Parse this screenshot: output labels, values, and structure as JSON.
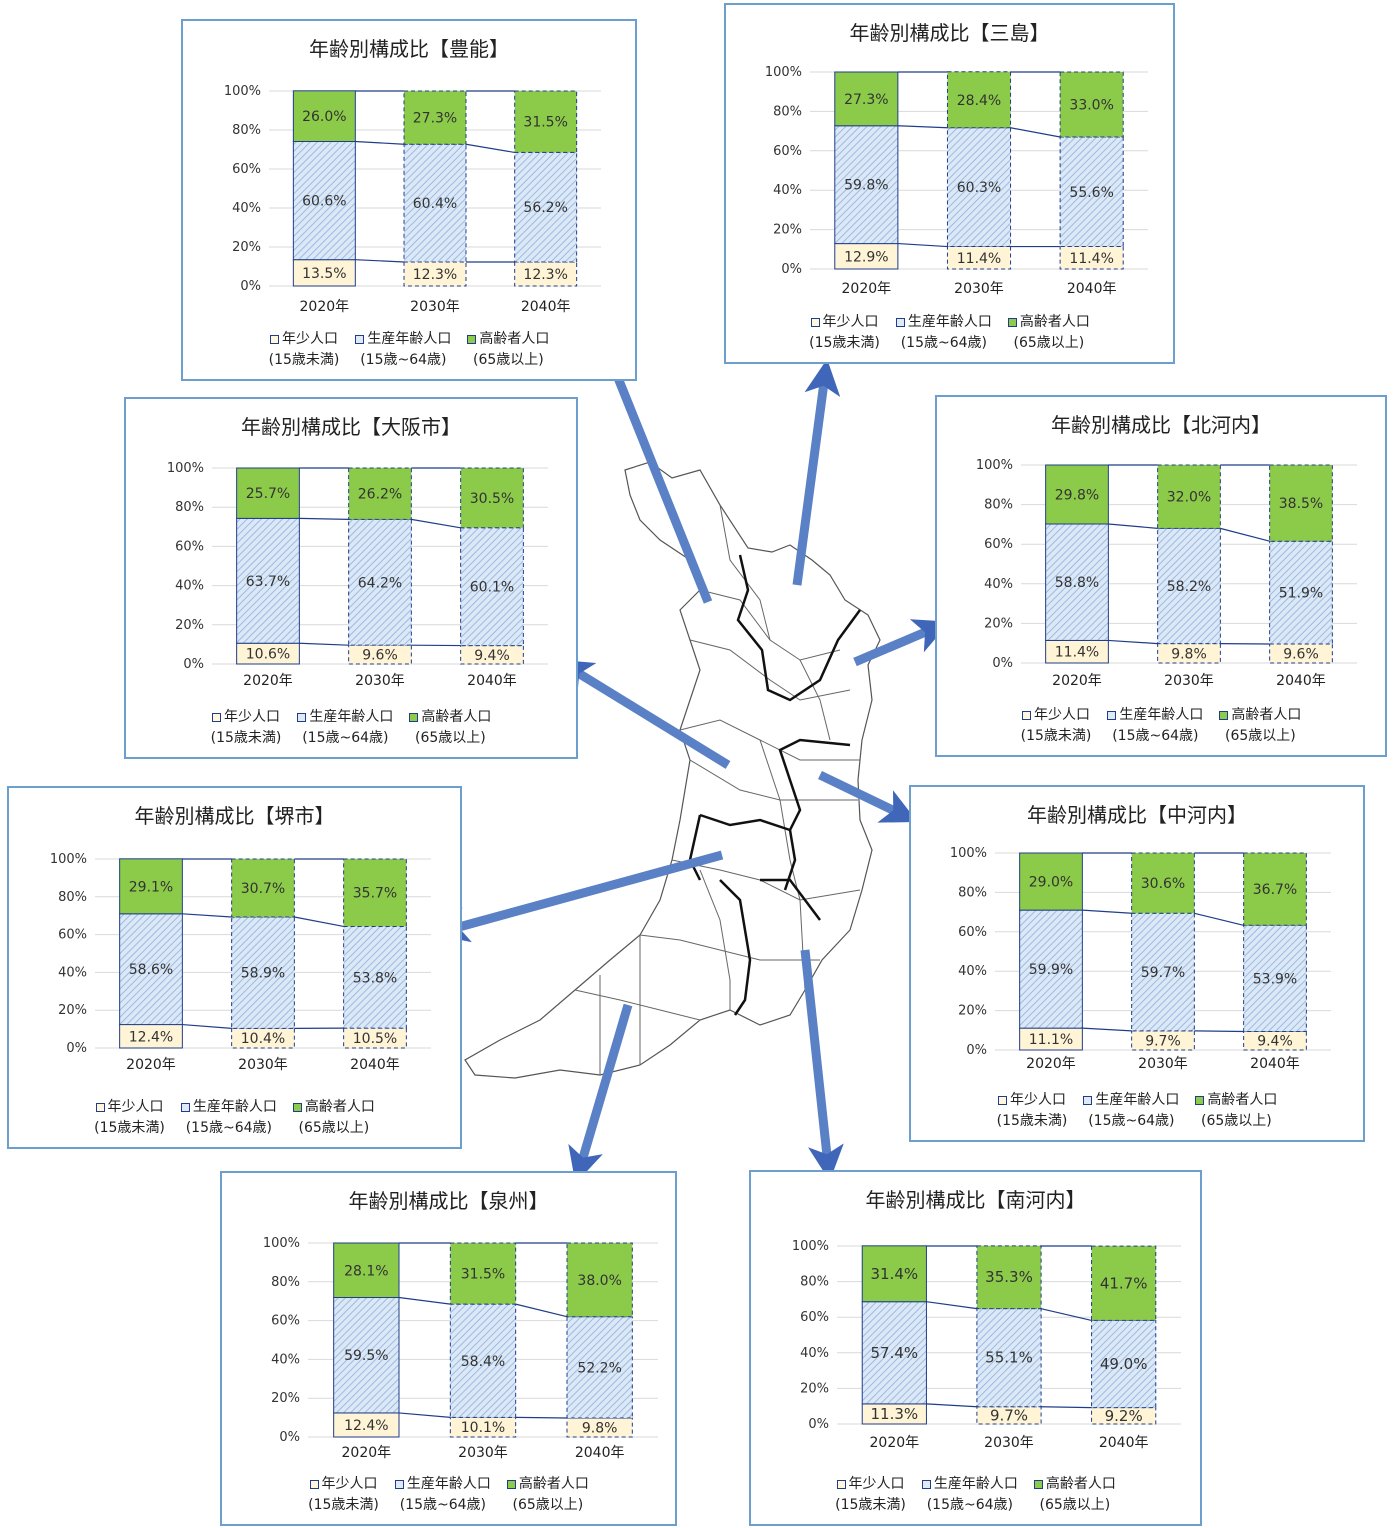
{
  "legend": {
    "youth": "年少人口",
    "youth_sub": "(15歳未満)",
    "working": "生産年齢人口",
    "working_sub": "(15歳~64歳)",
    "elderly": "高齢者人口",
    "elderly_sub": "(65歳以上)"
  },
  "colors": {
    "youth": "#fff4d6",
    "working": "#dce8f6",
    "elderly": "#8ccb4a",
    "border": "#1f3d8a",
    "arrow": "#4a72bd",
    "panel_border": "#6d9fce"
  },
  "chart_data": [
    {
      "type": "bar",
      "title": "年齢別構成比【豊能】",
      "categories": [
        "2020年",
        "2030年",
        "2040年"
      ],
      "yticks": [
        "0%",
        "20%",
        "40%",
        "60%",
        "80%",
        "100%"
      ],
      "ylim": [
        0,
        100
      ],
      "series": [
        {
          "name": "年少人口",
          "values": [
            13.5,
            12.3,
            12.3
          ],
          "labels": [
            "13.5%",
            "12.3%",
            "12.3%"
          ]
        },
        {
          "name": "生産年齢人口",
          "values": [
            60.6,
            60.4,
            56.2
          ],
          "labels": [
            "60.6%",
            "60.4%",
            "56.2%"
          ]
        },
        {
          "name": "高齢者人口",
          "values": [
            26.0,
            27.3,
            31.5
          ],
          "labels": [
            "26.0%",
            "27.3%",
            "31.5%"
          ]
        }
      ]
    },
    {
      "type": "bar",
      "title": "年齢別構成比【三島】",
      "categories": [
        "2020年",
        "2030年",
        "2040年"
      ],
      "yticks": [
        "0%",
        "20%",
        "40%",
        "60%",
        "80%",
        "100%"
      ],
      "ylim": [
        0,
        100
      ],
      "series": [
        {
          "name": "年少人口",
          "values": [
            12.9,
            11.4,
            11.4
          ],
          "labels": [
            "12.9%",
            "11.4%",
            "11.4%"
          ]
        },
        {
          "name": "生産年齢人口",
          "values": [
            59.8,
            60.3,
            55.6
          ],
          "labels": [
            "59.8%",
            "60.3%",
            "55.6%"
          ]
        },
        {
          "name": "高齢者人口",
          "values": [
            27.3,
            28.4,
            33.0
          ],
          "labels": [
            "27.3%",
            "28.4%",
            "33.0%"
          ]
        }
      ]
    },
    {
      "type": "bar",
      "title": "年齢別構成比【大阪市】",
      "categories": [
        "2020年",
        "2030年",
        "2040年"
      ],
      "yticks": [
        "0%",
        "20%",
        "40%",
        "60%",
        "80%",
        "100%"
      ],
      "ylim": [
        0,
        100
      ],
      "series": [
        {
          "name": "年少人口",
          "values": [
            10.6,
            9.6,
            9.4
          ],
          "labels": [
            "10.6%",
            "9.6%",
            "9.4%"
          ]
        },
        {
          "name": "生産年齢人口",
          "values": [
            63.7,
            64.2,
            60.1
          ],
          "labels": [
            "63.7%",
            "64.2%",
            "60.1%"
          ]
        },
        {
          "name": "高齢者人口",
          "values": [
            25.7,
            26.2,
            30.5
          ],
          "labels": [
            "25.7%",
            "26.2%",
            "30.5%"
          ]
        }
      ]
    },
    {
      "type": "bar",
      "title": "年齢別構成比【北河内】",
      "categories": [
        "2020年",
        "2030年",
        "2040年"
      ],
      "yticks": [
        "0%",
        "20%",
        "40%",
        "60%",
        "80%",
        "100%"
      ],
      "ylim": [
        0,
        100
      ],
      "series": [
        {
          "name": "年少人口",
          "values": [
            11.4,
            9.8,
            9.6
          ],
          "labels": [
            "11.4%",
            "9.8%",
            "9.6%"
          ]
        },
        {
          "name": "生産年齢人口",
          "values": [
            58.8,
            58.2,
            51.9
          ],
          "labels": [
            "58.8%",
            "58.2%",
            "51.9%"
          ]
        },
        {
          "name": "高齢者人口",
          "values": [
            29.8,
            32.0,
            38.5
          ],
          "labels": [
            "29.8%",
            "32.0%",
            "38.5%"
          ]
        }
      ]
    },
    {
      "type": "bar",
      "title": "年齢別構成比【堺市】",
      "categories": [
        "2020年",
        "2030年",
        "2040年"
      ],
      "yticks": [
        "0%",
        "20%",
        "40%",
        "60%",
        "80%",
        "100%"
      ],
      "ylim": [
        0,
        100
      ],
      "series": [
        {
          "name": "年少人口",
          "values": [
            12.4,
            10.4,
            10.5
          ],
          "labels": [
            "12.4%",
            "10.4%",
            "10.5%"
          ]
        },
        {
          "name": "生産年齢人口",
          "values": [
            58.6,
            58.9,
            53.8
          ],
          "labels": [
            "58.6%",
            "58.9%",
            "53.8%"
          ]
        },
        {
          "name": "高齢者人口",
          "values": [
            29.1,
            30.7,
            35.7
          ],
          "labels": [
            "29.1%",
            "30.7%",
            "35.7%"
          ]
        }
      ]
    },
    {
      "type": "bar",
      "title": "年齢別構成比【中河内】",
      "categories": [
        "2020年",
        "2030年",
        "2040年"
      ],
      "yticks": [
        "0%",
        "20%",
        "40%",
        "60%",
        "80%",
        "100%"
      ],
      "ylim": [
        0,
        100
      ],
      "series": [
        {
          "name": "年少人口",
          "values": [
            11.1,
            9.7,
            9.4
          ],
          "labels": [
            "11.1%",
            "9.7%",
            "9.4%"
          ]
        },
        {
          "name": "生産年齢人口",
          "values": [
            59.9,
            59.7,
            53.9
          ],
          "labels": [
            "59.9%",
            "59.7%",
            "53.9%"
          ]
        },
        {
          "name": "高齢者人口",
          "values": [
            29.0,
            30.6,
            36.7
          ],
          "labels": [
            "29.0%",
            "30.6%",
            "36.7%"
          ]
        }
      ]
    },
    {
      "type": "bar",
      "title": "年齢別構成比【泉州】",
      "categories": [
        "2020年",
        "2030年",
        "2040年"
      ],
      "yticks": [
        "0%",
        "20%",
        "40%",
        "60%",
        "80%",
        "100%"
      ],
      "ylim": [
        0,
        100
      ],
      "series": [
        {
          "name": "年少人口",
          "values": [
            12.4,
            10.1,
            9.8
          ],
          "labels": [
            "12.4%",
            "10.1%",
            "9.8%"
          ]
        },
        {
          "name": "生産年齢人口",
          "values": [
            59.5,
            58.4,
            52.2
          ],
          "labels": [
            "59.5%",
            "58.4%",
            "52.2%"
          ]
        },
        {
          "name": "高齢者人口",
          "values": [
            28.1,
            31.5,
            38.0
          ],
          "labels": [
            "28.1%",
            "31.5%",
            "38.0%"
          ]
        }
      ]
    },
    {
      "type": "bar",
      "title": "年齢別構成比【南河内】",
      "categories": [
        "2020年",
        "2030年",
        "2040年"
      ],
      "yticks": [
        "0%",
        "20%",
        "40%",
        "60%",
        "80%",
        "100%"
      ],
      "ylim": [
        0,
        100
      ],
      "series": [
        {
          "name": "年少人口",
          "values": [
            11.3,
            9.7,
            9.2
          ],
          "labels": [
            "11.3%",
            "9.7%",
            "9.2%"
          ]
        },
        {
          "name": "生産年齢人口",
          "values": [
            57.4,
            55.1,
            49.0
          ],
          "labels": [
            "57.4%",
            "55.1%",
            "49.0%"
          ]
        },
        {
          "name": "高齢者人口",
          "values": [
            31.4,
            35.3,
            41.7
          ],
          "labels": [
            "31.4%",
            "35.3%",
            "41.7%"
          ]
        }
      ]
    }
  ]
}
